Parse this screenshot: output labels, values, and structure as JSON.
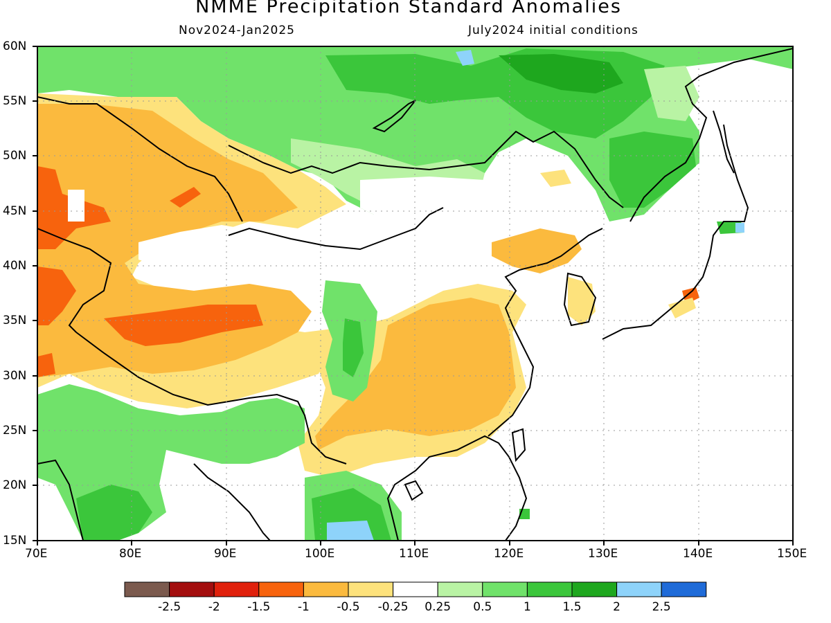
{
  "title": "NMME Precipitation Standard Anomalies",
  "subtitle_left": "Nov2024-Jan2025",
  "subtitle_right": "July2024 initial conditions",
  "map": {
    "lon_range": [
      70,
      150
    ],
    "lat_range": [
      15,
      60
    ],
    "lon_ticks": [
      "70E",
      "80E",
      "90E",
      "100E",
      "110E",
      "120E",
      "130E",
      "140E",
      "150E"
    ],
    "lat_ticks": [
      "60N",
      "55N",
      "50N",
      "45N",
      "40N",
      "35N",
      "30N",
      "25N",
      "20N",
      "15N"
    ],
    "grid": "dotted"
  },
  "legend": {
    "labels": [
      "-2.5",
      "-2",
      "-1.5",
      "-1",
      "-0.5",
      "-0.25",
      "0.25",
      "0.5",
      "1",
      "1.5",
      "2",
      "2.5"
    ],
    "colors": [
      "#7b5a4e",
      "#a30e0e",
      "#e0210c",
      "#f7630d",
      "#fbba3e",
      "#fde27c",
      "#ffffff",
      "#b9f3a4",
      "#70e26a",
      "#3bc63b",
      "#1ea71e",
      "#8ed3fa",
      "#1f6bd8"
    ]
  }
}
